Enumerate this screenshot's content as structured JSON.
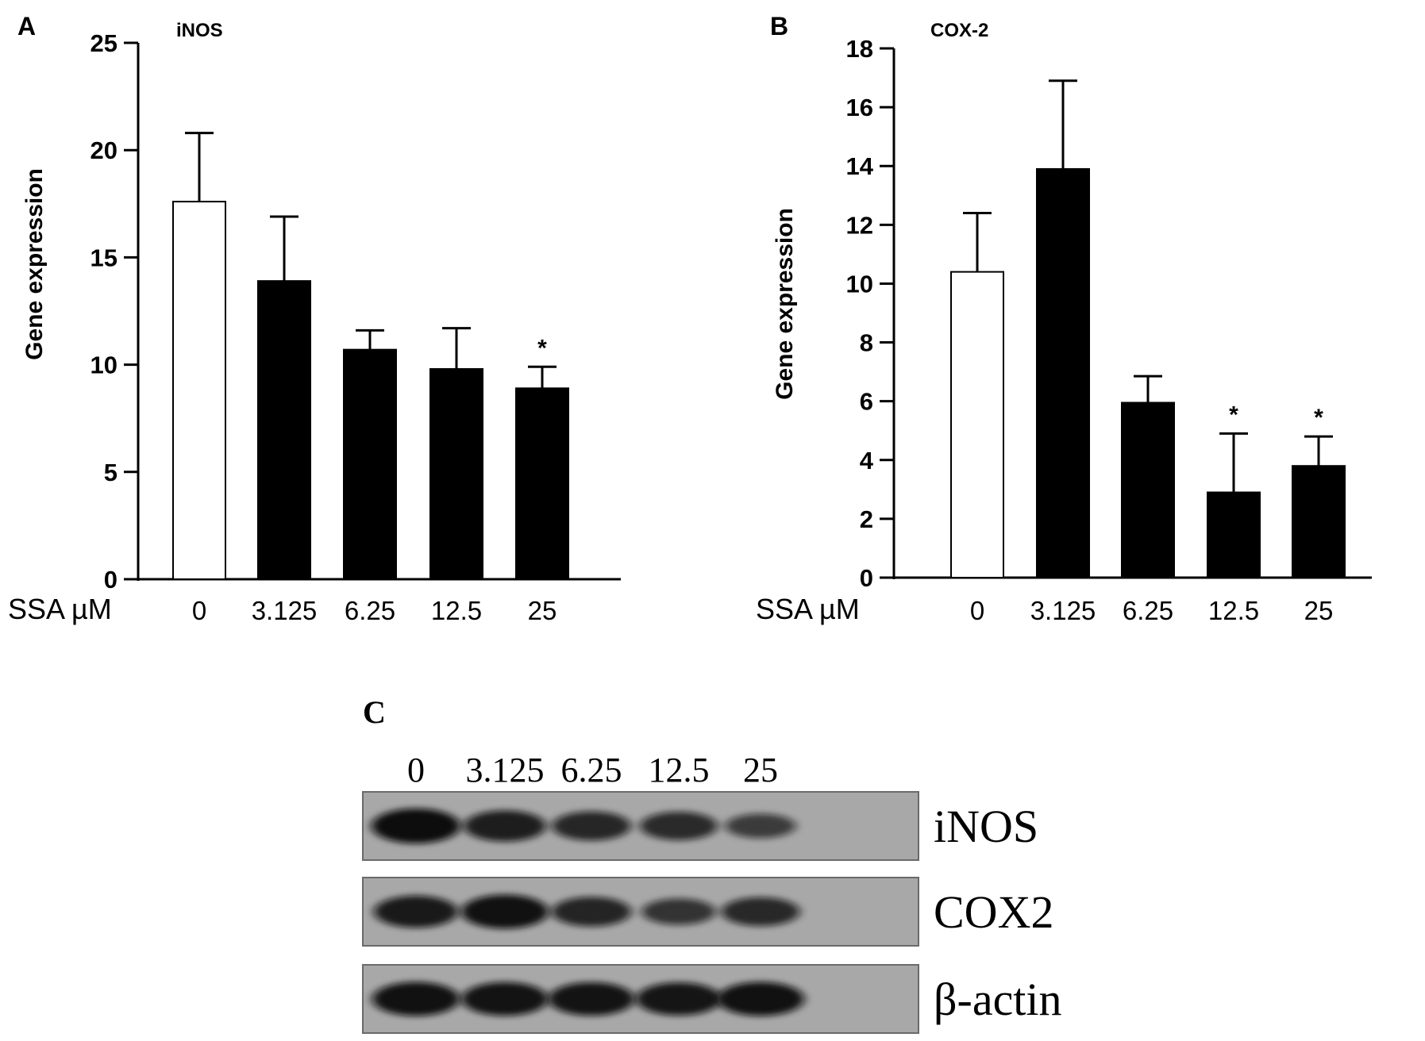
{
  "chart_data": [
    {
      "type": "bar",
      "panel_label": "A",
      "title": "iNOS",
      "xlabel": "SSA µM",
      "ylabel": "Gene expression",
      "categories": [
        "0",
        "3.125",
        "6.25",
        "12.5",
        "25"
      ],
      "series": [
        {
          "values": [
            17.6,
            13.9,
            10.7,
            9.8,
            8.9
          ],
          "errors": [
            3.2,
            3.0,
            0.9,
            1.9,
            1.0
          ]
        }
      ],
      "bar_fills": [
        "#ffffff",
        "#000000",
        "#000000",
        "#000000",
        "#000000"
      ],
      "significance": [
        "",
        "",
        "",
        "",
        "*"
      ],
      "ylim": [
        0,
        25
      ],
      "yticks": [
        0,
        5,
        10,
        15,
        20,
        25
      ],
      "grid": false,
      "legend": "none"
    },
    {
      "type": "bar",
      "panel_label": "B",
      "title": "COX-2",
      "xlabel": "SSA µM",
      "ylabel": "Gene expression",
      "categories": [
        "0",
        "3.125",
        "6.25",
        "12.5",
        "25"
      ],
      "series": [
        {
          "values": [
            10.4,
            13.9,
            5.95,
            2.9,
            3.8
          ],
          "errors": [
            2.0,
            3.0,
            0.9,
            2.0,
            1.0
          ]
        }
      ],
      "bar_fills": [
        "#ffffff",
        "#000000",
        "#000000",
        "#000000",
        "#000000"
      ],
      "significance": [
        "",
        "",
        "",
        "*",
        "*"
      ],
      "ylim": [
        0,
        18
      ],
      "yticks": [
        0,
        2,
        4,
        6,
        8,
        10,
        12,
        14,
        16,
        18
      ],
      "grid": false,
      "legend": "none"
    }
  ],
  "blot": {
    "panel_label": "C",
    "lanes": [
      "0",
      "3.125",
      "6.25",
      "12.5",
      "25"
    ],
    "rows": [
      {
        "label": "iNOS",
        "intensity": [
          1.0,
          0.8,
          0.7,
          0.66,
          0.45
        ]
      },
      {
        "label": "COX2",
        "intensity": [
          0.85,
          0.95,
          0.72,
          0.55,
          0.68
        ]
      },
      {
        "label": "β-actin",
        "intensity": [
          0.95,
          0.93,
          0.92,
          0.9,
          0.95
        ]
      }
    ],
    "colors": {
      "membrane": "#a8a8a8",
      "band": "#0c0c0c"
    }
  }
}
